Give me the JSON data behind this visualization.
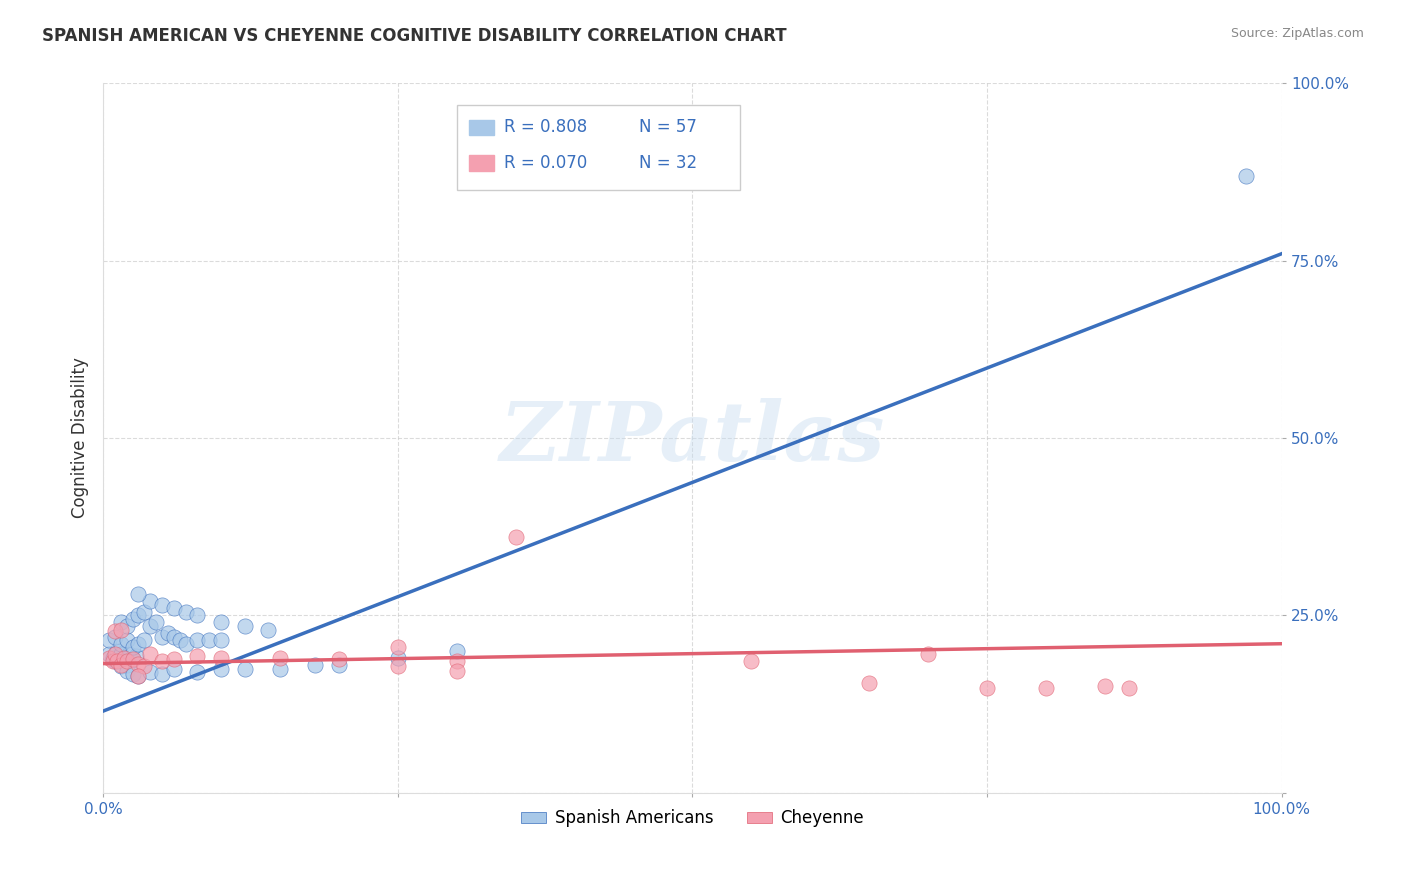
{
  "title": "SPANISH AMERICAN VS CHEYENNE COGNITIVE DISABILITY CORRELATION CHART",
  "source": "Source: ZipAtlas.com",
  "ylabel": "Cognitive Disability",
  "xlim": [
    0,
    1.0
  ],
  "ylim": [
    0,
    1.0
  ],
  "watermark": "ZIPatlas",
  "legend_blue_label": "Spanish Americans",
  "legend_pink_label": "Cheyenne",
  "blue_R": "R = 0.808",
  "blue_N": "N = 57",
  "pink_R": "R = 0.070",
  "pink_N": "N = 32",
  "blue_color": "#a8c8e8",
  "pink_color": "#f4a0b0",
  "blue_line_color": "#3a6fbd",
  "pink_line_color": "#e06070",
  "background_color": "#ffffff",
  "grid_color": "#cccccc",
  "blue_scatter_x": [
    0.005,
    0.008,
    0.01,
    0.012,
    0.015,
    0.018,
    0.02,
    0.022,
    0.025,
    0.028,
    0.005,
    0.01,
    0.015,
    0.02,
    0.025,
    0.03,
    0.035,
    0.015,
    0.02,
    0.025,
    0.03,
    0.035,
    0.04,
    0.045,
    0.05,
    0.055,
    0.06,
    0.065,
    0.07,
    0.08,
    0.09,
    0.1,
    0.04,
    0.05,
    0.06,
    0.07,
    0.08,
    0.1,
    0.12,
    0.14,
    0.015,
    0.02,
    0.025,
    0.03,
    0.04,
    0.05,
    0.06,
    0.08,
    0.1,
    0.12,
    0.15,
    0.18,
    0.2,
    0.25,
    0.3,
    0.97,
    0.03
  ],
  "blue_scatter_y": [
    0.195,
    0.19,
    0.185,
    0.2,
    0.195,
    0.185,
    0.18,
    0.195,
    0.188,
    0.192,
    0.215,
    0.22,
    0.21,
    0.215,
    0.205,
    0.21,
    0.215,
    0.24,
    0.235,
    0.245,
    0.25,
    0.255,
    0.235,
    0.24,
    0.22,
    0.225,
    0.22,
    0.215,
    0.21,
    0.215,
    0.215,
    0.215,
    0.27,
    0.265,
    0.26,
    0.255,
    0.25,
    0.24,
    0.235,
    0.23,
    0.178,
    0.172,
    0.168,
    0.165,
    0.17,
    0.168,
    0.175,
    0.17,
    0.175,
    0.175,
    0.175,
    0.18,
    0.18,
    0.19,
    0.2,
    0.87,
    0.28
  ],
  "pink_scatter_x": [
    0.005,
    0.008,
    0.01,
    0.012,
    0.015,
    0.018,
    0.02,
    0.025,
    0.03,
    0.035,
    0.04,
    0.05,
    0.06,
    0.08,
    0.1,
    0.15,
    0.2,
    0.25,
    0.3,
    0.35,
    0.55,
    0.65,
    0.7,
    0.75,
    0.8,
    0.85,
    0.87,
    0.01,
    0.015,
    0.03,
    0.25,
    0.3
  ],
  "pink_scatter_y": [
    0.19,
    0.185,
    0.195,
    0.185,
    0.18,
    0.19,
    0.185,
    0.188,
    0.182,
    0.178,
    0.195,
    0.185,
    0.188,
    0.192,
    0.19,
    0.19,
    0.188,
    0.205,
    0.185,
    0.36,
    0.185,
    0.155,
    0.195,
    0.148,
    0.148,
    0.15,
    0.148,
    0.228,
    0.23,
    0.165,
    0.178,
    0.172
  ],
  "blue_line_x": [
    0.0,
    1.0
  ],
  "blue_line_y": [
    0.115,
    0.76
  ],
  "pink_line_x": [
    0.0,
    1.0
  ],
  "pink_line_y": [
    0.182,
    0.21
  ]
}
